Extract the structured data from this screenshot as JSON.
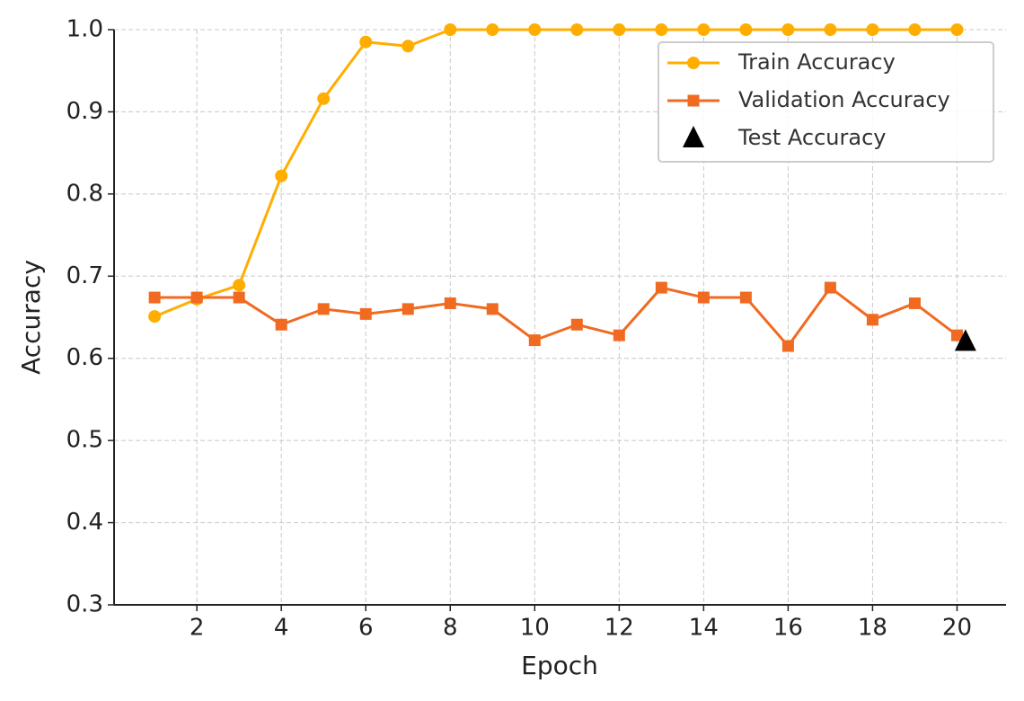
{
  "chart_data": {
    "type": "line",
    "xlabel": "Epoch",
    "ylabel": "Accuracy",
    "x": [
      1,
      2,
      3,
      4,
      5,
      6,
      7,
      8,
      9,
      10,
      11,
      12,
      13,
      14,
      15,
      16,
      17,
      18,
      19,
      20
    ],
    "series": [
      {
        "name": "Train Accuracy",
        "color": "#ffae00",
        "marker": "circle",
        "values": [
          0.651,
          0.672,
          0.689,
          0.822,
          0.916,
          0.985,
          0.98,
          1,
          1,
          1,
          1,
          1,
          1,
          1,
          1,
          1,
          1,
          1,
          1,
          1
        ]
      },
      {
        "name": "Validation Accuracy",
        "color": "#f06a22",
        "marker": "square",
        "values": [
          0.674,
          0.674,
          0.674,
          0.641,
          0.66,
          0.654,
          0.66,
          0.667,
          0.66,
          0.622,
          0.641,
          0.628,
          0.686,
          0.674,
          0.674,
          0.615,
          0.686,
          0.647,
          0.667,
          0.628
        ]
      },
      {
        "name": "Test Accuracy",
        "color": "#000000",
        "marker": "triangle",
        "x": [
          20.2
        ],
        "values": [
          0.62
        ]
      }
    ],
    "xlim": [
      0.04,
      21.16
    ],
    "ylim": [
      0.3,
      1.0
    ],
    "xticks": [
      2,
      4,
      6,
      8,
      10,
      12,
      14,
      16,
      18,
      20
    ],
    "yticks": [
      0.3,
      0.4,
      0.5,
      0.6,
      0.7,
      0.8,
      0.9,
      {
        "value": 1,
        "label": "1.0"
      }
    ],
    "grid": true,
    "legend": "upper right"
  }
}
